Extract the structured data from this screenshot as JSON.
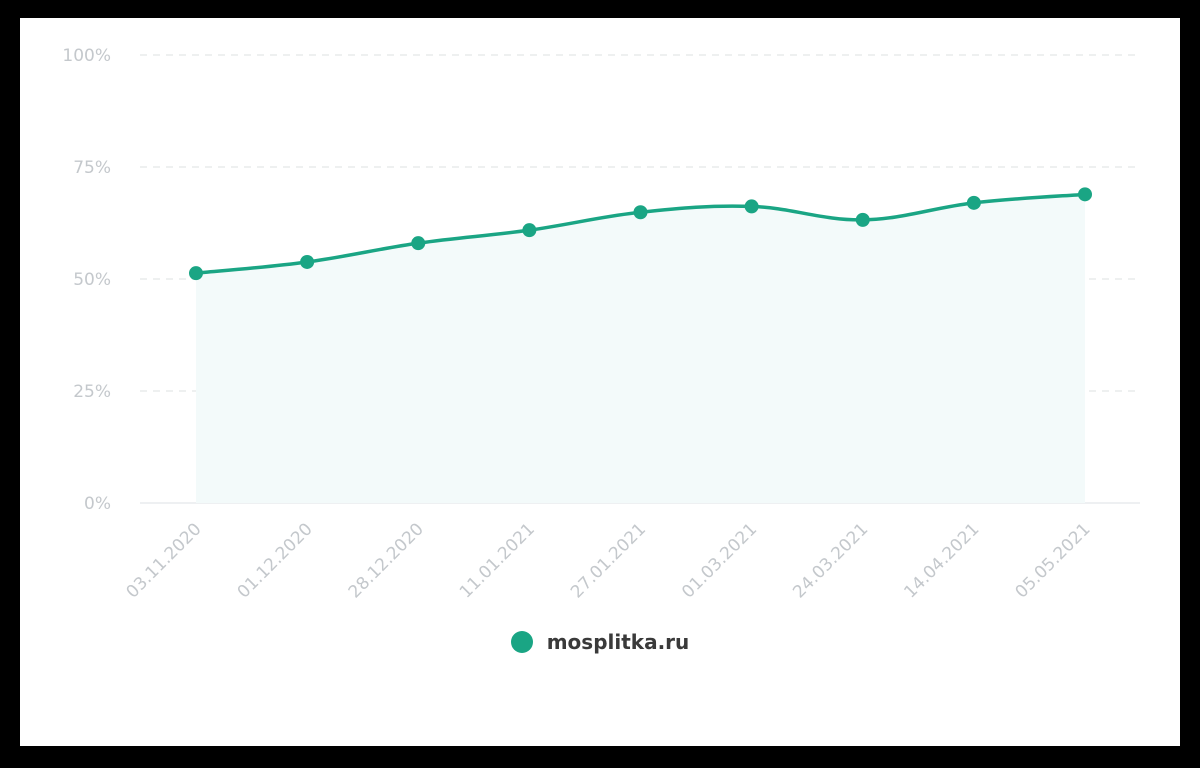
{
  "chart_data": {
    "type": "area",
    "categories": [
      "03.11.2020",
      "01.12.2020",
      "28.12.2020",
      "11.01.2021",
      "27.01.2021",
      "01.03.2021",
      "24.03.2021",
      "14.04.2021",
      "05.05.2021"
    ],
    "series": [
      {
        "name": "mosplitka.ru",
        "values": [
          51.3,
          53.8,
          58.0,
          60.9,
          64.9,
          66.2,
          63.2,
          67.0,
          68.9
        ],
        "color": "#1aa584",
        "fill_color": "#f3fafa"
      }
    ],
    "yticks": [
      "100%",
      "75%",
      "50%",
      "25%",
      "0%"
    ],
    "ylim": [
      0,
      100
    ],
    "grid": true,
    "legend_position": "bottom-center",
    "colors": {
      "gridline": "#e3e6e8",
      "baseline": "#e9ecee",
      "tick_text": "#c4c8cc",
      "legend_text": "#3a3a3a"
    }
  }
}
